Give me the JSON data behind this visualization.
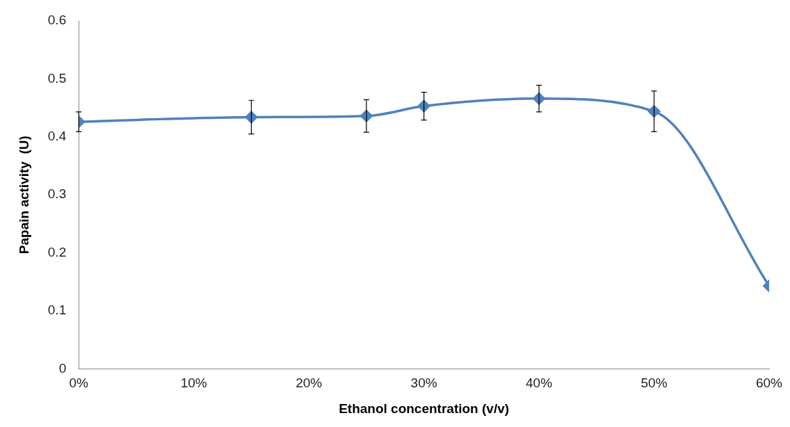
{
  "chart_data": {
    "type": "line",
    "xlabel": "Ethanol concentration (v/v)",
    "ylabel": "Papain activity  (U)",
    "x": [
      0,
      15,
      25,
      30,
      40,
      50,
      60
    ],
    "series": [
      {
        "color": "#4f81bd",
        "values": [
          0.426,
          0.434,
          0.436,
          0.453,
          0.466,
          0.444,
          0.143
        ],
        "errors": [
          0.017,
          0.029,
          0.028,
          0.024,
          0.023,
          0.035,
          null
        ]
      }
    ],
    "xlim": [
      0,
      60
    ],
    "xticks": [
      {
        "value": 0,
        "label": "0%"
      },
      {
        "value": 10,
        "label": "10%"
      },
      {
        "value": 20,
        "label": "20%"
      },
      {
        "value": 30,
        "label": "30%"
      },
      {
        "value": 40,
        "label": "40%"
      },
      {
        "value": 50,
        "label": "50%"
      },
      {
        "value": 60,
        "label": "60%"
      }
    ],
    "ylim": [
      0,
      0.6
    ],
    "yticks": [
      {
        "value": 0,
        "label": "0"
      },
      {
        "value": 0.1,
        "label": "0.1"
      },
      {
        "value": 0.2,
        "label": "0.2"
      },
      {
        "value": 0.3,
        "label": "0.3"
      },
      {
        "value": 0.4,
        "label": "0.4"
      },
      {
        "value": 0.5,
        "label": "0.5"
      },
      {
        "value": 0.6,
        "label": "0.6"
      }
    ],
    "grid": false,
    "legend": false,
    "marker": "diamond",
    "line_style": "solid"
  }
}
